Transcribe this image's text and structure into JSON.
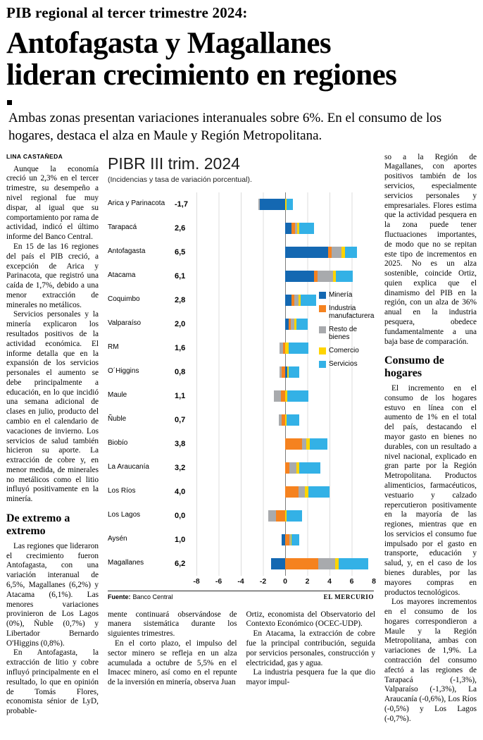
{
  "header": {
    "kicker": "PIB regional al tercer trimestre 2024:",
    "headline_line1": "Antofagasta y Magallanes",
    "headline_line2": "lideran crecimiento en regiones",
    "deck": "Ambas zonas presentan variaciones interanuales sobre 6%. En el consumo de los hogares, destaca el alza en Maule y Región Metropolitana."
  },
  "article": {
    "byline": "LINA CASTAÑEDA",
    "left_column": {
      "paragraphs": [
        "Aunque la economía creció un 2,3% en el tercer trimestre, su desempeño a nivel regional fue muy dispar, al igual que su comportamiento por rama de actividad, indicó el último informe del Banco Central.",
        "En 15 de las 16 regiones del país el PIB creció, a excepción de Arica y Parinacota, que registró una caída de 1,7%, debido a una menor extracción de minerales no metálicos.",
        "Servicios personales y la minería explicaron los resultados positivos de la actividad económica. El informe detalla que en la expansión de los servicios personales el aumento se debe principalmente a educación, en lo que incidió una semana adicional de clases en julio, producto del cambio en el calendario de vacaciones de invierno. Los servicios de salud también hicieron su aporte. La extracción de cobre y, en menor medida, de minerales no metálicos como el litio influyó positivamente en la minería."
      ],
      "subhead": "De extremo a extremo",
      "paragraphs_2": [
        "Las regiones que lideraron el crecimiento fueron Antofagasta, con una variación interanual de 6,5%, Magallanes (6,2%) y Atacama (6,1%). Las menores variaciones provinieron de Los Lagos (0%), Ñuble (0,7%) y Libertador Bernardo O'Higgins (0,8%).",
        "En Antofagasta, la extracción de litio y cobre influyó principalmente en el resultado, lo que en opinión de Tomás Flores, economista sénior de LyD, probable-"
      ]
    },
    "mid_column_1": {
      "paragraphs": [
        "mente continuará observándose de manera sistemática durante los siguientes trimestres.",
        "En el corto plazo, el impulso del sector minero se refleja en un alza acumulada a octubre de 5,5% en el Imacec minero, así como en el repunte de la inversión en minería, observa Juan"
      ]
    },
    "mid_column_2": {
      "paragraphs": [
        "Ortiz, economista del Observatorio del Contexto Económico (OCEC-UDP).",
        "En Atacama, la extracción de cobre fue la principal contribución, seguida por servicios personales, construcción y electricidad, gas y agua.",
        "La industria pesquera fue la que dio mayor impul-"
      ]
    },
    "right_column": {
      "paragraphs": [
        "so a la Región de Magallanes, con aportes positivos también de los servicios, especialmente servicios personales y empresariales. Flores estima que la actividad pesquera en la zona puede tener fluctuaciones importantes, de modo que no se repitan este tipo de incrementos en 2025. No es un alza sostenible, coincide Ortiz, quien explica que el dinamismo del PIB en la región, con un alza de 36% anual en la industria pesquera, obedece fundamentalmente a una baja base de comparación."
      ],
      "subhead": "Consumo de hogares",
      "paragraphs_2": [
        "El incremento en el consumo de los hogares estuvo en línea con el aumento de 1% en el total del país, destacando el mayor gasto en bienes no durables, con un resultado a nivel nacional, explicado en gran parte por la Región Metropolitana. Productos alimenticios, farmacéuticos, vestuario y calzado repercutieron positivamente en la mayoría de las regiones, mientras que en los servicios el consumo fue impulsado por el gasto en transporte, educación y salud, y, en el caso de los bienes durables, por las mayores compras en productos tecnológicos.",
        "Los mayores incrementos en el consumo de los hogares correspondieron a Maule y la Región Metropolitana, ambas con variaciones de 1,9%. La contracción del consumo afectó a las regiones de Tarapacá (-1,3%), Valparaíso (-1,3%), La Araucanía (-0,6%), Los Ríos (-0,5%) y Los Lagos (-0,7%)."
      ]
    }
  },
  "chart_data": {
    "type": "bar",
    "orientation": "horizontal",
    "stacked": true,
    "title": "PIBR III trim. 2024",
    "subtitle": "(Incidencias y tasa de variación porcentual).",
    "xlim": [
      -8,
      8
    ],
    "xticks": [
      -8,
      -6,
      -4,
      -2,
      0,
      2,
      4,
      6,
      8
    ],
    "xtick_labels": [
      "-8",
      "-6",
      "-4",
      "-2",
      "0",
      "2",
      "4",
      "6",
      "8"
    ],
    "grid": true,
    "legend_position": "right-middle",
    "source_label": "Fuente:",
    "source": "Banco Central",
    "credit": "EL MERCURIO",
    "categories": [
      "Arica y Parinacota",
      "Tarapacá",
      "Antofagasta",
      "Atacama",
      "Coquimbo",
      "Valparaíso",
      "RM",
      "O´Higgins",
      "Maule",
      "Ñuble",
      "Biobío",
      "La Araucanía",
      "Los Ríos",
      "Los Lagos",
      "Aysén",
      "Magallanes"
    ],
    "totals": [
      -1.7,
      2.6,
      6.5,
      6.1,
      2.8,
      2.0,
      1.6,
      0.8,
      1.1,
      0.7,
      3.8,
      3.2,
      4.0,
      0.0,
      1.0,
      6.2
    ],
    "totals_display": [
      "-1,7",
      "2,6",
      "6,5",
      "6,1",
      "2,8",
      "2,0",
      "1,6",
      "0,8",
      "1,1",
      "0,7",
      "3,8",
      "3,2",
      "4,0",
      "0,0",
      "1,0",
      "6,2"
    ],
    "series": [
      {
        "name": "Minería",
        "color": "#1468b2",
        "values": [
          -2.3,
          0.6,
          3.9,
          2.6,
          0.6,
          0.3,
          0.0,
          0.2,
          0.0,
          0.0,
          0.0,
          0.0,
          0.0,
          0.0,
          -0.3,
          -1.3
        ]
      },
      {
        "name": "Industria manufacturera",
        "color": "#f5821f",
        "values": [
          0.0,
          0.3,
          0.3,
          0.3,
          0.2,
          0.2,
          -0.2,
          -0.3,
          -0.4,
          -0.3,
          1.5,
          0.4,
          1.2,
          -0.8,
          0.4,
          3.0
        ]
      },
      {
        "name": "Resto de bienes",
        "color": "#a8aaad",
        "values": [
          -0.1,
          0.2,
          0.9,
          1.4,
          0.4,
          0.3,
          -0.3,
          -0.2,
          -0.6,
          -0.3,
          0.4,
          0.6,
          0.6,
          -0.7,
          0.1,
          1.5
        ]
      },
      {
        "name": "Comercio",
        "color": "#ffd400",
        "values": [
          0.1,
          0.2,
          0.3,
          0.3,
          0.2,
          0.2,
          0.3,
          0.1,
          0.2,
          0.1,
          0.3,
          0.3,
          0.3,
          0.1,
          0.1,
          0.3
        ]
      },
      {
        "name": "Servicios",
        "color": "#33b1e6",
        "values": [
          0.6,
          1.3,
          1.1,
          1.5,
          1.4,
          1.0,
          1.8,
          1.0,
          1.9,
          1.2,
          1.6,
          1.9,
          1.9,
          1.4,
          0.7,
          2.7
        ]
      }
    ]
  }
}
